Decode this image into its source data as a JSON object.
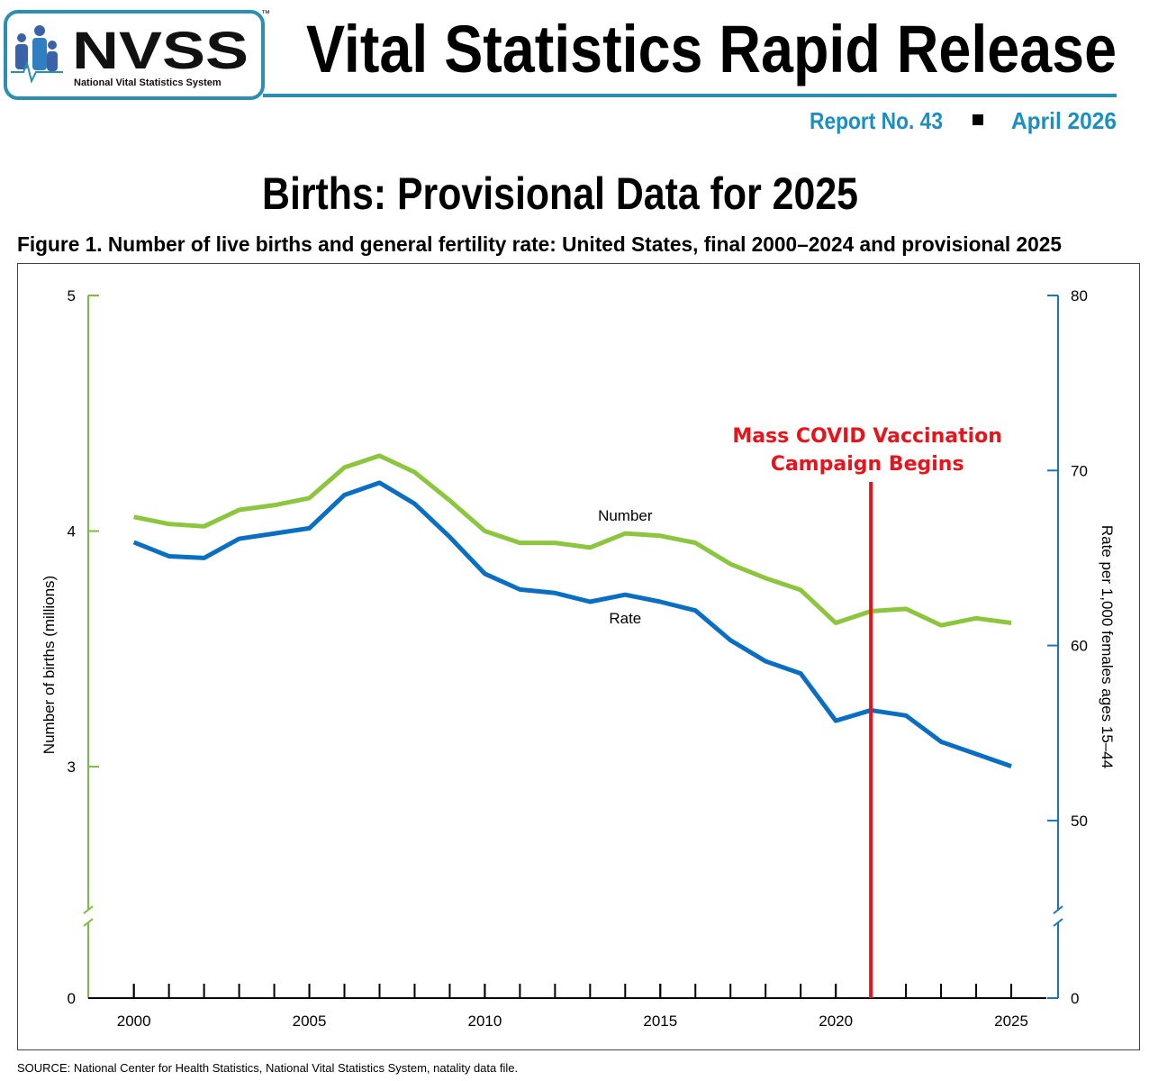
{
  "header": {
    "logo": "NVSS",
    "logo_subtitle": "National Vital Statistics System",
    "trademark": "™",
    "title": "Vital Statistics Rapid Release",
    "report": "Report No. 43",
    "date": "April 2026",
    "headline": "Births: Provisional Data for 2025"
  },
  "chart_data": {
    "type": "line",
    "title": "Figure 1. Number of live births and general fertility rate: United States, final 2000–2024 and provisional 2025",
    "source": "SOURCE: National Center for Health Statistics, National Vital Statistics System, natality data file.",
    "ylabel": "Number of births (millions)",
    "y2label": "Rate per 1,000 females ages 15–44",
    "x": [
      2000,
      2001,
      2002,
      2003,
      2004,
      2005,
      2006,
      2007,
      2008,
      2009,
      2010,
      2011,
      2012,
      2013,
      2014,
      2015,
      2016,
      2017,
      2018,
      2019,
      2020,
      2021,
      2022,
      2023,
      2024,
      2025
    ],
    "xlim": [
      1998.7,
      2026
    ],
    "xticks": [
      2000,
      2005,
      2010,
      2015,
      2020,
      2025
    ],
    "ylim": [
      0,
      5
    ],
    "yticks": [
      0,
      3,
      4,
      5
    ],
    "y_break": [
      0,
      2.4
    ],
    "y2lim": [
      0,
      80
    ],
    "y2ticks": [
      0,
      50,
      60,
      70,
      80
    ],
    "y2_break": [
      0,
      45
    ],
    "series": [
      {
        "name": "Number",
        "color": "#8cc63f",
        "axis_color": "#7dbb42",
        "values": [
          4.06,
          4.03,
          4.02,
          4.09,
          4.11,
          4.14,
          4.27,
          4.32,
          4.25,
          4.13,
          4.0,
          3.95,
          3.95,
          3.93,
          3.99,
          3.98,
          3.95,
          3.86,
          3.8,
          3.75,
          3.61,
          3.66,
          3.67,
          3.6,
          3.63,
          3.61
        ]
      },
      {
        "name": "Rate",
        "axis": "y2",
        "color": "#0a6fc2",
        "axis_color": "#1a75bc",
        "values": [
          65.9,
          65.1,
          65.0,
          66.1,
          66.4,
          66.7,
          68.6,
          69.3,
          68.1,
          66.2,
          64.1,
          63.2,
          63.0,
          62.5,
          62.9,
          62.5,
          62.0,
          60.3,
          59.1,
          58.4,
          55.7,
          56.3,
          56.0,
          54.5,
          53.8,
          53.1
        ]
      }
    ],
    "annotation": {
      "text": [
        "Mass COVID Vaccination",
        "Campaign Begins"
      ],
      "x": 2021,
      "color": "#e8141c"
    }
  }
}
